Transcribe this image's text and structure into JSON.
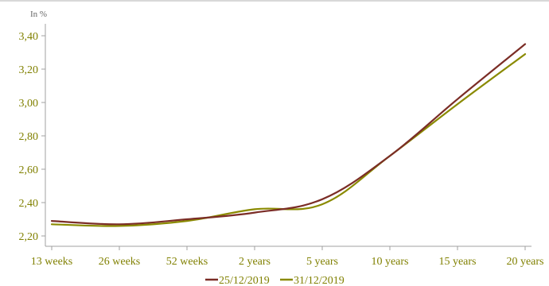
{
  "chart_data": {
    "type": "line",
    "unit_label": "In %",
    "categories": [
      "13 weeks",
      "26 weeks",
      "52 weeks",
      "2 years",
      "5 years",
      "10 years",
      "15 years",
      "20 years"
    ],
    "y_ticks": [
      "2,20",
      "2,40",
      "2,60",
      "2,80",
      "3,00",
      "3,20",
      "3,40"
    ],
    "ylim": [
      2.2,
      3.45
    ],
    "grid": false,
    "legend_position": "bottom",
    "series": [
      {
        "name": "25/12/2019",
        "color": "#7b2d26",
        "values": [
          2.29,
          2.27,
          2.3,
          2.34,
          2.42,
          2.68,
          3.02,
          3.35
        ]
      },
      {
        "name": "31/12/2019",
        "color": "#8a8a00",
        "values": [
          2.27,
          2.26,
          2.29,
          2.36,
          2.39,
          2.68,
          2.99,
          3.29
        ]
      }
    ],
    "colors": {
      "axis": "#a0a0a0",
      "tick_text": "#808000"
    }
  }
}
